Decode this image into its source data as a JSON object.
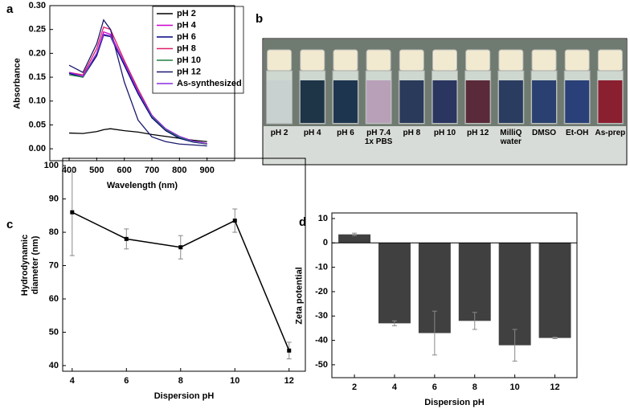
{
  "chart_data": [
    {
      "type": "line",
      "panel": "a",
      "x_label": "Wavelength (nm)",
      "y_label": "Absorbance",
      "x": [
        400,
        450,
        500,
        525,
        550,
        600,
        650,
        700,
        750,
        800,
        850,
        900
      ],
      "series": [
        {
          "name": "pH 2",
          "color": "#000000",
          "values": [
            0.033,
            0.032,
            0.036,
            0.04,
            0.042,
            0.038,
            0.035,
            0.03,
            0.026,
            0.022,
            0.018,
            0.015
          ]
        },
        {
          "name": "pH 4",
          "color": "#cc00cc",
          "values": [
            0.16,
            0.152,
            0.2,
            0.245,
            0.24,
            0.18,
            0.12,
            0.07,
            0.04,
            0.025,
            0.015,
            0.01
          ]
        },
        {
          "name": "pH 6",
          "color": "#000080",
          "values": [
            0.158,
            0.15,
            0.195,
            0.238,
            0.235,
            0.175,
            0.115,
            0.065,
            0.038,
            0.022,
            0.014,
            0.01
          ]
        },
        {
          "name": "pH 8",
          "color": "#e0206a",
          "values": [
            0.16,
            0.155,
            0.21,
            0.255,
            0.25,
            0.185,
            0.125,
            0.07,
            0.04,
            0.025,
            0.016,
            0.011
          ]
        },
        {
          "name": "pH 10",
          "color": "#208040",
          "values": [
            0.155,
            0.15,
            0.2,
            0.24,
            0.236,
            0.18,
            0.12,
            0.068,
            0.04,
            0.024,
            0.015,
            0.01
          ]
        },
        {
          "name": "pH 12",
          "color": "#1a1a6e",
          "values": [
            0.175,
            0.16,
            0.22,
            0.27,
            0.25,
            0.14,
            0.06,
            0.025,
            0.015,
            0.01,
            0.008,
            0.006
          ]
        },
        {
          "name": "As-synthesized",
          "color": "#8a2be2",
          "values": [
            0.16,
            0.152,
            0.2,
            0.24,
            0.237,
            0.18,
            0.12,
            0.07,
            0.042,
            0.026,
            0.016,
            0.011
          ]
        }
      ],
      "xlim": [
        330,
        1000
      ],
      "xticks": [
        400,
        500,
        600,
        700,
        800,
        900
      ],
      "ylim": [
        -0.025,
        0.3
      ],
      "yticks": [
        {
          "value": 0,
          "label": "0.00"
        },
        {
          "value": 0.05,
          "label": "0.05"
        },
        {
          "value": 0.1,
          "label": "0.10"
        },
        {
          "value": 0.15,
          "label": "0.15"
        },
        {
          "value": 0.2,
          "label": "0.20"
        },
        {
          "value": 0.25,
          "label": "0.25"
        },
        {
          "value": 0.3,
          "label": "0.30"
        }
      ],
      "legend": "upper right"
    },
    {
      "type": "image",
      "panel": "b",
      "categories": [
        "pH 2",
        "pH 4",
        "pH 6",
        "pH 7.4\n1x PBS",
        "pH 8",
        "pH 10",
        "pH 12",
        "MilliQ\nwater",
        "DMSO",
        "Et-OH",
        "As-prep"
      ],
      "colors": [
        "#c8d0d0",
        "#1e3548",
        "#1e3550",
        "#b8a0b8",
        "#2a3a5a",
        "#2a3560",
        "#5a2a3a",
        "#2a3d60",
        "#2a4070",
        "#2a4078",
        "#8a1f30"
      ]
    },
    {
      "type": "line",
      "panel": "c",
      "x_label": "Dispersion pH",
      "y_label": "Hydrodynamic\ndiameter (nm)",
      "x": [
        4,
        6,
        8,
        10,
        12
      ],
      "values": [
        86,
        78,
        75.5,
        83.5,
        44.5
      ],
      "errors": [
        13,
        3,
        3.5,
        3.5,
        2.5
      ],
      "color": "#000000",
      "xlim": [
        3.65,
        12.6
      ],
      "xticks": [
        4,
        6,
        8,
        10,
        12
      ],
      "ylim": [
        38.3,
        102.2
      ],
      "yticks": [
        40,
        50,
        60,
        70,
        80,
        90,
        100
      ]
    },
    {
      "type": "bar",
      "panel": "d",
      "x_label": "Dispersion pH",
      "y_label": "Zeta potential",
      "x": [
        2,
        4,
        6,
        8,
        10,
        12
      ],
      "values": [
        3.5,
        -33,
        -37,
        -32,
        -42,
        -39
      ],
      "errors": [
        0.5,
        1,
        9,
        3.5,
        6.5,
        0.3
      ],
      "color": "#404040",
      "xlim": [
        0.875,
        13.1
      ],
      "xticks": [
        2,
        4,
        6,
        8,
        10,
        12
      ],
      "ylim": [
        -55.3,
        12.3
      ],
      "yticks": [
        10,
        0,
        -10,
        -20,
        -30,
        -40,
        -50
      ]
    }
  ]
}
